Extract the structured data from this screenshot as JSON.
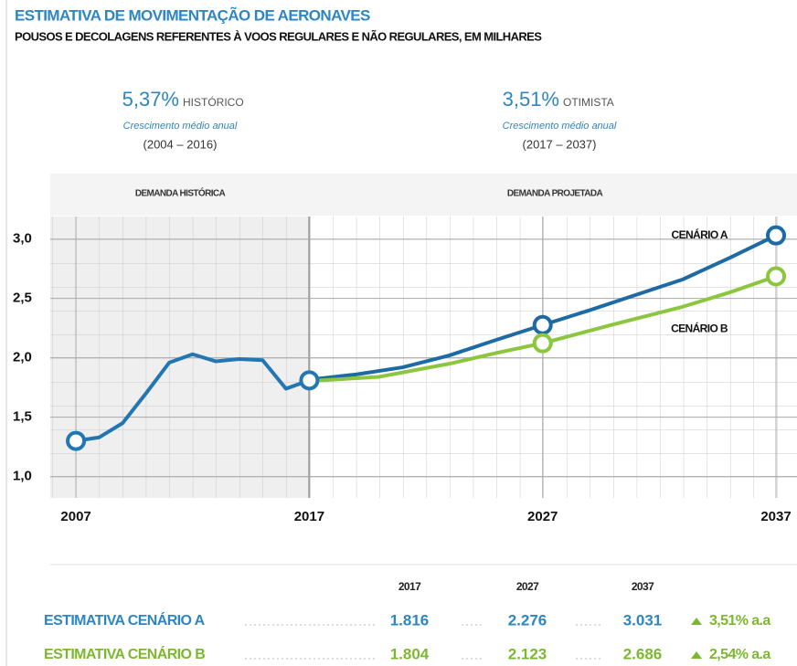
{
  "chart_data": {
    "type": "line",
    "title": "ESTIMATIVA DE MOVIMENTAÇÃO DE AERONAVES",
    "subtitle": "POUSOS E DECOLAGENS REFERENTES À VOOS REGULARES E NÃO REGULARES, EM MILHARES",
    "stats": [
      {
        "value": "5,37%",
        "label": "HISTÓRICO",
        "caption": "Crescimento médio anual",
        "period": "(2004 – 2016)"
      },
      {
        "value": "3,51%",
        "label": "OTIMISTA",
        "caption": "Crescimento médio anual",
        "period": "(2017 – 2037)"
      }
    ],
    "sections": [
      "DEMANDA HISTÓRICA",
      "DEMANDA PROJETADA"
    ],
    "xlim": [
      2005.9,
      2037.9
    ],
    "ylim": [
      0.82,
      3.19
    ],
    "xticks": [
      2007,
      2017,
      2027,
      2037
    ],
    "yticks": [
      {
        "value": 1.0,
        "label": "1,0"
      },
      {
        "value": 1.5,
        "label": "1,5"
      },
      {
        "value": 2.0,
        "label": "2,0"
      },
      {
        "value": 2.5,
        "label": "2,5"
      },
      {
        "value": 3.0,
        "label": "3,0"
      }
    ],
    "grid": true,
    "series": [
      {
        "color": "#2277b3",
        "x": [
          2007,
          2008,
          2009,
          2010,
          2011,
          2012,
          2013,
          2014,
          2015,
          2016,
          2017
        ],
        "values": [
          1.3,
          1.33,
          1.45,
          1.7,
          1.96,
          2.03,
          1.97,
          1.99,
          1.98,
          1.74,
          1.81
        ]
      },
      {
        "name": "CENÁRIO A",
        "color": "#1d6aa5",
        "x": [
          2017,
          2019,
          2021,
          2023,
          2025,
          2027,
          2029,
          2031,
          2033,
          2035,
          2037
        ],
        "values": [
          1.816,
          1.86,
          1.92,
          2.02,
          2.15,
          2.276,
          2.4,
          2.53,
          2.66,
          2.84,
          3.031
        ]
      },
      {
        "name": "CENÁRIO B",
        "color": "#8cc63f",
        "x": [
          2017,
          2020,
          2023,
          2025,
          2027,
          2030,
          2033,
          2035,
          2037
        ],
        "values": [
          1.804,
          1.84,
          1.95,
          2.04,
          2.123,
          2.28,
          2.43,
          2.55,
          2.686
        ]
      }
    ]
  },
  "table": {
    "header": [
      "2017",
      "2027",
      "2037"
    ],
    "rows": [
      [
        "ESTIMATIVA CENÁRIO A",
        "1.816",
        "2.276",
        "3.031",
        "3,51% a.a"
      ],
      [
        "ESTIMATIVA CENÁRIO B",
        "1.804",
        "2.123",
        "2.686",
        "2,54% a.a"
      ]
    ]
  }
}
